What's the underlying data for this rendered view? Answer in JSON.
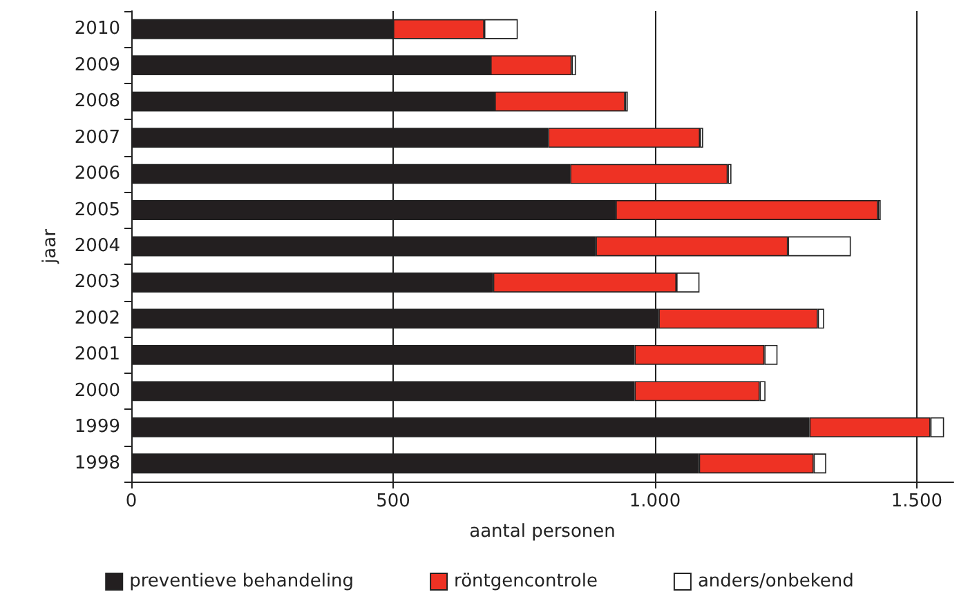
{
  "chart_data": {
    "type": "bar",
    "orientation": "horizontal",
    "stacked": true,
    "xlabel": "aantal personen",
    "ylabel": "jaar",
    "categories": [
      "2010",
      "2009",
      "2008",
      "2007",
      "2006",
      "2005",
      "2004",
      "2003",
      "2002",
      "2001",
      "2000",
      "1999",
      "1998"
    ],
    "series": [
      {
        "name": "preventieve behandeling",
        "color": "#231f20",
        "values": [
          500,
          686,
          694,
          796,
          838,
          925,
          887,
          691,
          1007,
          961,
          961,
          1295,
          1084
        ]
      },
      {
        "name": "röntgencontrole",
        "color": "#ee3224",
        "values": [
          174,
          155,
          249,
          290,
          301,
          501,
          367,
          350,
          304,
          248,
          239,
          231,
          219
        ]
      },
      {
        "name": "anders/onbekend",
        "color": "#ffffff",
        "values": [
          64,
          8,
          5,
          6,
          7,
          5,
          120,
          44,
          12,
          25,
          11,
          26,
          24
        ]
      }
    ],
    "xlim": [
      0,
      1570
    ],
    "xticks": [
      {
        "value": 0,
        "label": "0"
      },
      {
        "value": 500,
        "label": "500"
      },
      {
        "value": 1000,
        "label": "1.000"
      },
      {
        "value": 1500,
        "label": "1.500"
      }
    ],
    "grid": "x",
    "legend": "bottom"
  }
}
